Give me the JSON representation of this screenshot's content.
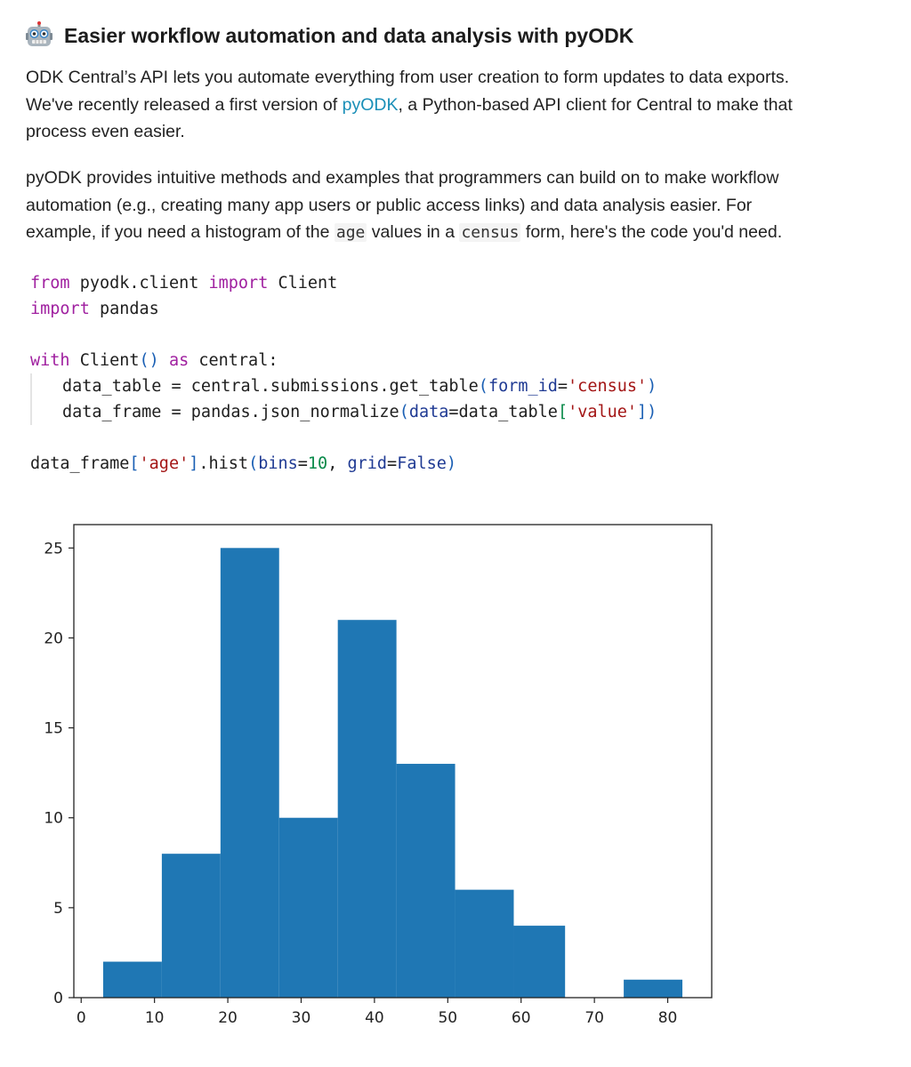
{
  "heading": {
    "icon": "robot-icon",
    "title": "Easier workflow automation and data analysis with pyODK"
  },
  "paragraph1": {
    "line1": "ODK Central’s API lets you automate everything from user creation to form updates to data exports.",
    "line2_before": "We've recently released a first version of ",
    "link": "pyODK",
    "line2_after": ", a Python-based API client for Central to make that",
    "line3": "process even easier."
  },
  "paragraph2": {
    "line1": "pyODK provides intuitive methods and examples that programmers can build on to make workflow",
    "line2": "automation (e.g., creating many app users or public access links) and data analysis easier. For",
    "line3_a": "example, if you need a histogram of the ",
    "code_age": "age",
    "line3_b": " values in a ",
    "code_census": "census",
    "line3_c": " form, here's the code you'd need."
  },
  "code": {
    "l1": {
      "kw1": "from",
      "a": " pyodk.client ",
      "kw2": "import",
      "b": " Client"
    },
    "l2": {
      "kw1": "import",
      "a": " pandas"
    },
    "l4": {
      "kw1": "with",
      "a": " Client",
      "p": "()",
      "sp": " ",
      "kw2": "as",
      "b": " central:"
    },
    "l5": {
      "a": "data_table = central.submissions.get_table",
      "p1": "(",
      "arg": "form_id",
      "eq": "=",
      "s": "'census'",
      "p2": ")"
    },
    "l6": {
      "a": "data_frame = pandas.json_normalize",
      "p1": "(",
      "arg": "data",
      "eq": "=data_table",
      "b1": "[",
      "s": "'value'",
      "b2": "])"
    },
    "l8": {
      "a": "data_frame",
      "b1": "[",
      "s": "'age'",
      "b2": "]",
      "c": ".hist",
      "p1": "(",
      "arg1": "bins",
      "eq1": "=",
      "n": "10",
      "cm": ", ",
      "arg2": "grid",
      "eq2": "=",
      "k": "False",
      "p2": ")"
    }
  },
  "chart_data": {
    "type": "bar",
    "bins": [
      {
        "start": 3,
        "end": 11,
        "count": 2
      },
      {
        "start": 11,
        "end": 19,
        "count": 8
      },
      {
        "start": 19,
        "end": 27,
        "count": 25
      },
      {
        "start": 27,
        "end": 35,
        "count": 10
      },
      {
        "start": 35,
        "end": 43,
        "count": 21
      },
      {
        "start": 43,
        "end": 51,
        "count": 13
      },
      {
        "start": 51,
        "end": 59,
        "count": 6
      },
      {
        "start": 59,
        "end": 66,
        "count": 4
      },
      {
        "start": 66,
        "end": 74,
        "count": 0
      },
      {
        "start": 74,
        "end": 82,
        "count": 1
      }
    ],
    "xlim": [
      -1,
      86
    ],
    "ylim": [
      0,
      26.3
    ],
    "xticks": [
      "0",
      "10",
      "20",
      "30",
      "40",
      "50",
      "60",
      "70",
      "80"
    ],
    "yticks": [
      "0",
      "5",
      "10",
      "15",
      "20",
      "25"
    ],
    "grid": false,
    "bar_color": "#1f77b4"
  }
}
